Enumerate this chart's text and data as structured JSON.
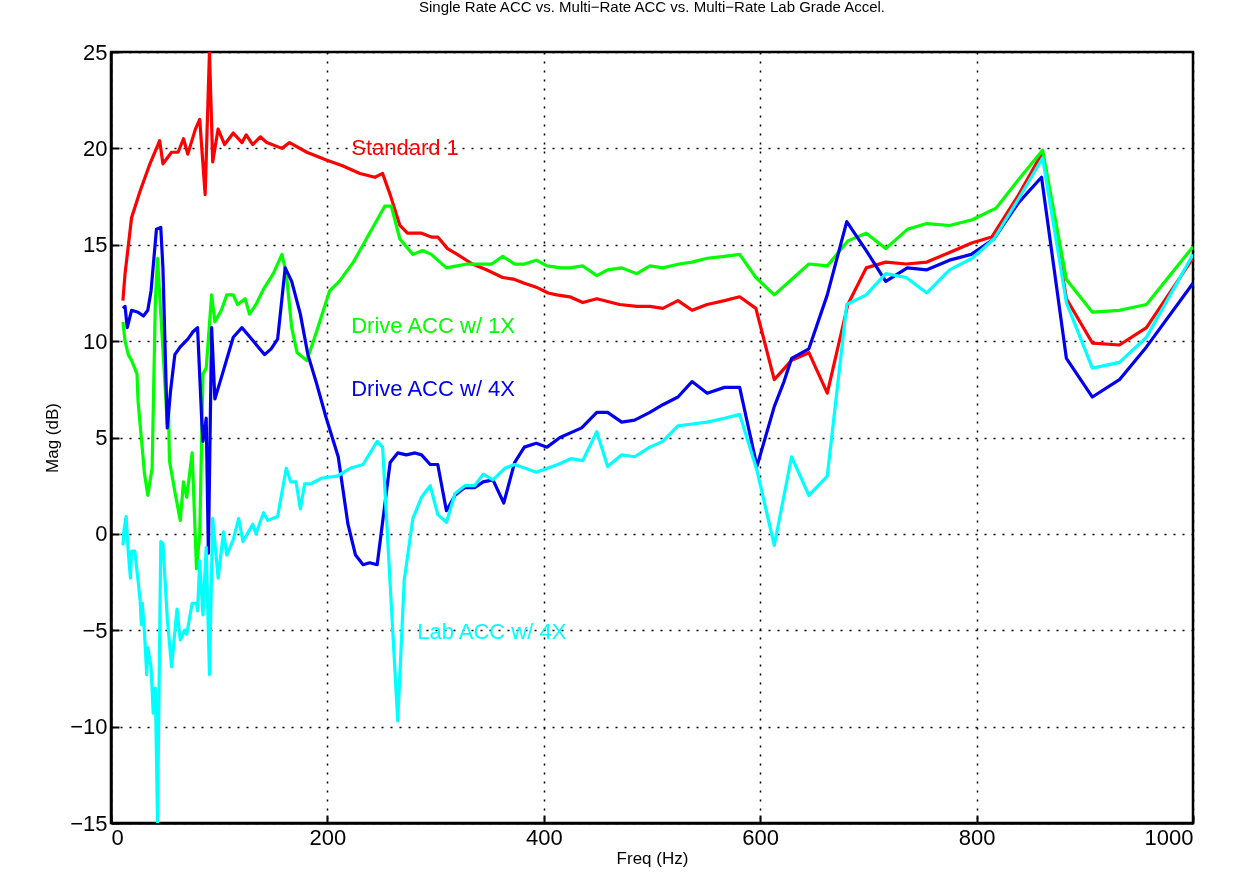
{
  "chart_data": {
    "type": "line",
    "title": "Single Rate ACC vs. Multi−Rate ACC vs. Multi−Rate Lab Grade Accel.",
    "xlabel": "Freq (Hz)",
    "ylabel": "Mag (dB)",
    "xlim": [
      0,
      1000
    ],
    "xticks": [
      0,
      200,
      400,
      600,
      800,
      1000
    ],
    "ylim": [
      -15,
      25
    ],
    "yticks": [
      -15,
      -10,
      -5,
      0,
      5,
      10,
      15,
      20,
      25
    ],
    "grid": true,
    "legend": false,
    "marker": "none",
    "line_style": "solid",
    "series": [
      {
        "name": "Standard 1",
        "color": "#ff0000",
        "x": [
          11,
          13,
          19,
          27,
          36,
          45,
          48,
          56,
          62,
          67,
          71,
          78,
          82,
          87,
          91,
          94,
          99,
          105,
          113,
          121,
          125,
          131,
          138,
          144,
          158,
          165,
          181,
          199,
          214,
          230,
          244,
          251,
          258,
          267,
          274,
          287,
          296,
          302,
          311,
          320,
          334,
          347,
          362,
          373,
          382,
          393,
          404,
          412,
          424,
          436,
          449,
          470,
          486,
          498,
          510,
          524,
          537,
          551,
          567,
          581,
          596,
          613,
          629,
          645,
          662,
          681,
          698,
          716,
          735,
          754,
          775,
          796,
          814,
          839,
          861,
          883,
          907,
          932,
          957,
          1000
        ],
        "values": [
          12.1,
          13.5,
          16.4,
          17.8,
          19.2,
          20.4,
          19.2,
          19.8,
          19.8,
          20.5,
          19.7,
          21.0,
          21.5,
          17.6,
          25.0,
          19.3,
          21.0,
          20.2,
          20.8,
          20.3,
          20.7,
          20.2,
          20.6,
          20.3,
          20.0,
          20.3,
          19.8,
          19.4,
          19.1,
          18.7,
          18.5,
          18.7,
          17.6,
          16.0,
          15.6,
          15.6,
          15.4,
          15.4,
          14.8,
          14.5,
          14.0,
          13.7,
          13.3,
          13.2,
          13.0,
          12.8,
          12.5,
          12.4,
          12.3,
          12.0,
          12.2,
          11.9,
          11.8,
          11.8,
          11.7,
          12.1,
          11.6,
          11.9,
          12.1,
          12.3,
          11.7,
          8.0,
          9.0,
          9.4,
          7.3,
          11.9,
          13.8,
          14.1,
          14.0,
          14.1,
          14.6,
          15.1,
          15.4,
          17.6,
          19.8,
          12.2,
          9.9,
          9.8,
          10.7,
          14.3
        ]
      },
      {
        "name": "Drive ACC w/ 1X",
        "color": "#00ff00",
        "x": [
          11,
          13,
          16,
          19,
          24,
          25,
          31,
          34,
          38,
          41,
          43,
          52,
          53,
          54,
          59,
          64,
          67,
          70,
          75,
          79,
          82,
          85,
          88,
          93,
          96,
          102,
          107,
          113,
          117,
          124,
          128,
          134,
          141,
          150,
          158,
          162,
          167,
          172,
          181,
          190,
          202,
          211,
          224,
          236,
          253,
          259,
          267,
          279,
          288,
          296,
          310,
          329,
          352,
          362,
          373,
          382,
          393,
          403,
          416,
          424,
          436,
          449,
          459,
          472,
          486,
          498,
          510,
          525,
          537,
          551,
          567,
          581,
          596,
          613,
          629,
          645,
          662,
          681,
          698,
          716,
          736,
          754,
          775,
          796,
          818,
          839,
          861,
          883,
          907,
          932,
          957,
          1000
        ],
        "values": [
          11.0,
          10.0,
          9.3,
          9.0,
          8.3,
          6.9,
          3.1,
          2.0,
          3.4,
          12.1,
          14.3,
          5.7,
          6.9,
          3.8,
          2.2,
          0.7,
          2.7,
          1.9,
          4.2,
          -1.8,
          0.0,
          8.3,
          8.6,
          12.4,
          11.0,
          11.6,
          12.4,
          12.4,
          11.9,
          12.2,
          11.4,
          11.9,
          12.7,
          13.5,
          14.5,
          13.5,
          10.7,
          9.4,
          9.0,
          10.5,
          12.6,
          13.1,
          14.1,
          15.3,
          17.0,
          17.0,
          15.3,
          14.5,
          14.7,
          14.5,
          13.8,
          14.0,
          14.0,
          14.4,
          14.0,
          14.0,
          14.2,
          13.9,
          13.8,
          13.8,
          13.9,
          13.4,
          13.7,
          13.8,
          13.5,
          13.9,
          13.8,
          14.0,
          14.1,
          14.3,
          14.4,
          14.5,
          13.3,
          12.4,
          13.2,
          14.0,
          13.9,
          15.2,
          15.6,
          14.8,
          15.8,
          16.1,
          16.0,
          16.3,
          16.9,
          18.4,
          19.9,
          13.2,
          11.5,
          11.6,
          11.9,
          14.9
        ]
      },
      {
        "name": "Drive ACC w/ 4X",
        "color": "#0000ee",
        "x": [
          11,
          13,
          15,
          19,
          25,
          30,
          34,
          37,
          42,
          46,
          48,
          52,
          55,
          59,
          64,
          71,
          76,
          80,
          84,
          85,
          88,
          90,
          93,
          96,
          103,
          113,
          121,
          127,
          136,
          142,
          148,
          154,
          161,
          167,
          175,
          182,
          190,
          199,
          210,
          219,
          226,
          233,
          239,
          246,
          258,
          265,
          273,
          281,
          287,
          295,
          302,
          310,
          318,
          327,
          336,
          344,
          353,
          363,
          373,
          382,
          393,
          403,
          415,
          435,
          449,
          459,
          472,
          484,
          498,
          510,
          524,
          537,
          551,
          567,
          581,
          597,
          613,
          622,
          629,
          645,
          662,
          680,
          698,
          716,
          736,
          754,
          775,
          795,
          816,
          839,
          860,
          883,
          907,
          932,
          957,
          1000
        ],
        "values": [
          11.7,
          11.8,
          10.7,
          11.6,
          11.5,
          11.3,
          11.6,
          12.6,
          15.8,
          15.9,
          13.8,
          5.5,
          7.4,
          9.3,
          9.7,
          10.1,
          10.5,
          10.7,
          5.7,
          4.8,
          6.0,
          -1.0,
          10.7,
          7.0,
          8.3,
          10.2,
          10.7,
          10.3,
          9.7,
          9.3,
          9.6,
          10.1,
          13.8,
          13.1,
          11.4,
          9.3,
          7.8,
          6.0,
          4.0,
          0.5,
          -1.1,
          -1.6,
          -1.5,
          -1.6,
          3.7,
          4.2,
          4.1,
          4.2,
          4.1,
          3.6,
          3.6,
          1.2,
          2.0,
          2.4,
          2.4,
          2.7,
          2.8,
          1.6,
          3.7,
          4.5,
          4.7,
          4.5,
          5.0,
          5.5,
          6.3,
          6.3,
          5.8,
          5.9,
          6.3,
          6.7,
          7.1,
          7.9,
          7.3,
          7.6,
          7.6,
          3.5,
          6.6,
          7.9,
          9.1,
          9.6,
          12.4,
          16.2,
          14.7,
          13.1,
          13.8,
          13.7,
          14.2,
          14.5,
          15.3,
          17.2,
          18.5,
          9.1,
          7.1,
          8.0,
          9.7,
          13.0
        ]
      },
      {
        "name": "Lab ACC w/ 4X",
        "color": "#00ffff",
        "x": [
          11,
          12,
          14,
          16,
          18,
          19,
          22,
          25,
          27,
          28,
          29,
          31,
          33,
          34,
          37,
          39,
          41,
          43,
          46,
          48,
          52,
          56,
          61,
          64,
          68,
          70,
          75,
          79,
          80,
          82,
          85,
          88,
          91,
          94,
          99,
          104,
          107,
          113,
          118,
          122,
          131,
          134,
          141,
          145,
          154,
          162,
          166,
          171,
          175,
          179,
          185,
          195,
          209,
          221,
          233,
          246,
          251,
          265,
          271,
          279,
          287,
          295,
          302,
          310,
          318,
          327,
          336,
          344,
          353,
          364,
          373,
          393,
          413,
          425,
          436,
          449,
          459,
          472,
          484,
          498,
          510,
          524,
          537,
          551,
          567,
          581,
          597,
          613,
          629,
          645,
          662,
          680,
          698,
          716,
          735,
          754,
          775,
          796,
          816,
          839,
          861,
          883,
          907,
          932,
          957,
          1000
        ],
        "values": [
          -0.6,
          0.2,
          0.9,
          -1.0,
          -2.3,
          -0.9,
          -0.9,
          -2.4,
          -3.5,
          -4.7,
          -3.6,
          -5.2,
          -7.3,
          -5.9,
          -6.9,
          -9.3,
          -8.0,
          -15.0,
          -0.4,
          -0.5,
          -4.4,
          -6.9,
          -3.9,
          -5.5,
          -5.0,
          -5.2,
          -3.6,
          -3.6,
          -4.0,
          -1.4,
          -4.2,
          -0.7,
          -7.3,
          0.8,
          -2.3,
          0.1,
          -1.1,
          -0.3,
          0.8,
          -0.4,
          0.5,
          0.0,
          1.1,
          0.7,
          0.9,
          3.4,
          2.7,
          2.7,
          1.3,
          2.6,
          2.6,
          2.9,
          3.0,
          3.4,
          3.6,
          4.8,
          4.5,
          -9.7,
          -2.4,
          0.8,
          1.9,
          2.5,
          1.0,
          0.6,
          2.1,
          2.5,
          2.5,
          3.1,
          2.8,
          3.4,
          3.6,
          3.2,
          3.6,
          3.9,
          3.8,
          5.3,
          3.5,
          4.1,
          4.0,
          4.5,
          4.8,
          5.6,
          5.7,
          5.8,
          6.0,
          6.2,
          3.3,
          -0.6,
          4.0,
          2.0,
          3.0,
          11.9,
          12.4,
          13.5,
          13.3,
          12.5,
          13.7,
          14.3,
          15.3,
          17.4,
          19.5,
          12.0,
          8.6,
          8.9,
          10.2,
          14.5
        ]
      }
    ]
  }
}
